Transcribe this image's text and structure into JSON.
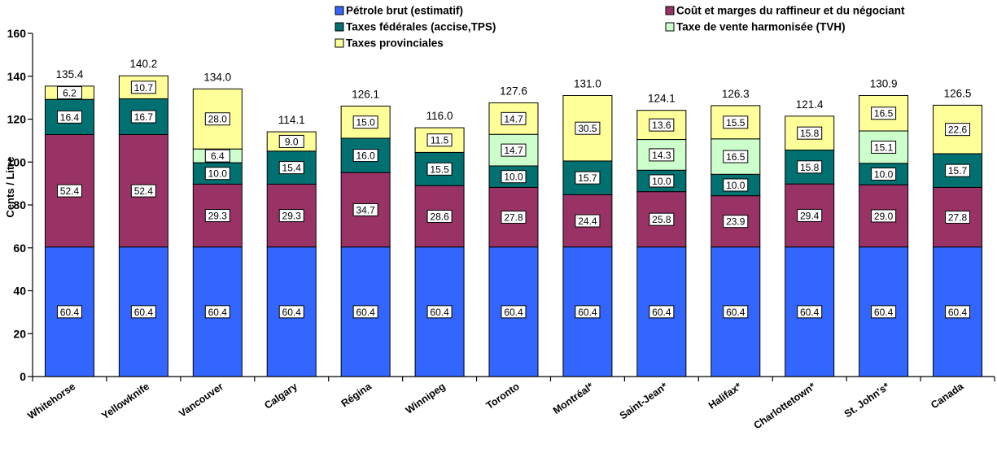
{
  "chart_data": {
    "type": "bar",
    "stacked": true,
    "ylabel": "Cents / Litre",
    "ylim": [
      0,
      160
    ],
    "yticks": [
      0,
      20,
      40,
      60,
      80,
      100,
      120,
      140,
      160
    ],
    "categories": [
      "Whitehorse",
      "Yellowknife",
      "Vancouver",
      "Calgary",
      "Régina",
      "Winnipeg",
      "Toronto",
      "Montréal*",
      "Saint-Jean*",
      "Halifax*",
      "Charlottetown*",
      "St. John's*",
      "Canada"
    ],
    "series": [
      {
        "name": "Pétrole brut (estimatif)",
        "color": "#3366ff",
        "values": [
          60.4,
          60.4,
          60.4,
          60.4,
          60.4,
          60.4,
          60.4,
          60.4,
          60.4,
          60.4,
          60.4,
          60.4,
          60.4
        ]
      },
      {
        "name": "Coût et marges du raffineur et du négociant",
        "color": "#993366",
        "values": [
          52.4,
          52.4,
          29.3,
          29.3,
          34.7,
          28.6,
          27.8,
          24.4,
          25.8,
          23.9,
          29.4,
          29.0,
          27.8
        ]
      },
      {
        "name": "Taxes fédérales (accise,TPS)",
        "color": "#007070",
        "values": [
          16.4,
          16.7,
          10.0,
          15.4,
          16.0,
          15.5,
          10.0,
          15.7,
          10.0,
          10.0,
          15.8,
          10.0,
          15.7
        ]
      },
      {
        "name": "Taxe de vente harmonisée (TVH)",
        "color": "#ccffcc",
        "values": [
          null,
          null,
          6.4,
          null,
          null,
          null,
          14.7,
          null,
          14.3,
          16.5,
          null,
          15.1,
          null
        ]
      },
      {
        "name": "Taxes provinciales",
        "color": "#ffff99",
        "values": [
          6.2,
          10.7,
          28.0,
          9.0,
          15.0,
          11.5,
          14.7,
          30.5,
          13.6,
          15.5,
          15.8,
          16.5,
          22.6
        ]
      }
    ],
    "totals": [
      "135.4",
      "140.2",
      "134.0",
      "114.1",
      "126.1",
      "116.0",
      "127.6",
      "131.0",
      "124.1",
      "126.3",
      "121.4",
      "130.9",
      "126.5"
    ],
    "legend_position": "top",
    "grid": false
  }
}
